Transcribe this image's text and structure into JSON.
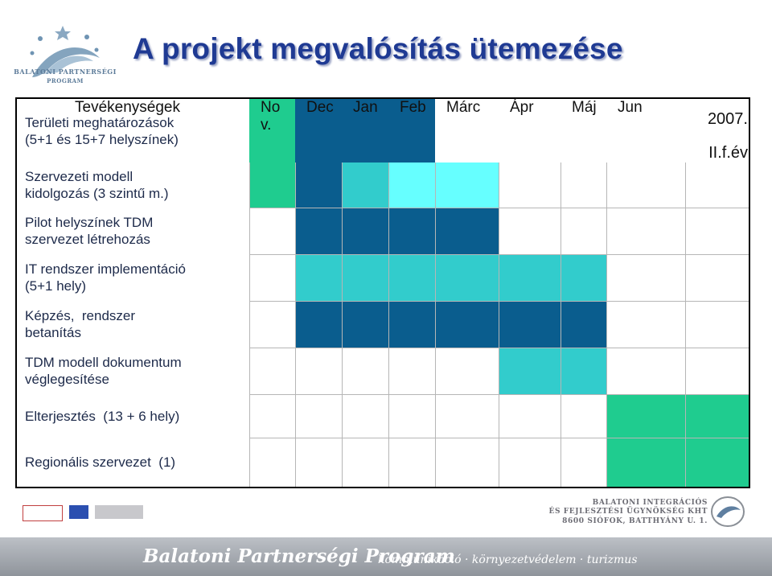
{
  "title": "A projekt megvalósítás ütemezése",
  "logo": {
    "line1": "BALATONI PARTNERSÉGI",
    "line2": "PROGRAM"
  },
  "table": {
    "activities_header": "Tevékenységek",
    "months": [
      "No\nv.",
      "Dec",
      "Jan",
      "Feb",
      "Márc",
      "Ápr",
      "Máj",
      "Jun"
    ],
    "last_col_header": "2007.\nII.f.év",
    "rows": [
      {
        "label": "Területi meghatározások\n(5+1 és 15+7 helyszínek)",
        "cells": [
          "green",
          "dark",
          "dark",
          "dark",
          "",
          "",
          "",
          "",
          ""
        ]
      },
      {
        "label": "Szervezeti modell\nkidolgozás (3 szintű m.)",
        "cells": [
          "green",
          "dark",
          "teal",
          "cyan",
          "cyan",
          "",
          "",
          "",
          ""
        ]
      },
      {
        "label": "Pilot helyszínek TDM\nszervezet létrehozás",
        "cells": [
          "",
          "dark",
          "dark",
          "dark",
          "dark",
          "",
          "",
          "",
          ""
        ]
      },
      {
        "label": "IT rendszer implementáció\n(5+1 hely)",
        "cells": [
          "",
          "teal",
          "teal",
          "teal",
          "teal",
          "teal",
          "teal",
          "",
          ""
        ]
      },
      {
        "label": "Képzés,  rendszer\nbetanítás",
        "cells": [
          "",
          "dark",
          "dark",
          "dark",
          "dark",
          "dark",
          "dark",
          "",
          ""
        ]
      },
      {
        "label": "TDM modell dokumentum\nvéglegesítése",
        "cells": [
          "",
          "",
          "",
          "",
          "",
          "teal",
          "teal",
          "",
          ""
        ]
      },
      {
        "label": "Elterjesztés  (13 + 6 hely)",
        "cells": [
          "",
          "",
          "",
          "",
          "",
          "",
          "",
          "green",
          "green"
        ]
      },
      {
        "label": "Regionális szervezet  (1)",
        "cells": [
          "",
          "",
          "",
          "",
          "",
          "",
          "",
          "green",
          "green"
        ]
      }
    ]
  },
  "colors": {
    "dark": "#0a5d8e",
    "teal": "#32cccc",
    "cyan": "#66ffff",
    "green": "#1fcc8f",
    "grid": "#b6b6b6"
  },
  "footer": {
    "agency_line1": "BALATONI INTEGRÁCIÓS",
    "agency_line2": "ÉS FEJLESZTÉSI ÜGYNÖKSÉG KHT",
    "agency_line3": "8600 SIÓFOK, BATTHYÁNY U. 1.",
    "program_title": "Balatoni Partnerségi Program",
    "program_tagline": "kommunikáció · környezetvédelem · turizmus"
  }
}
